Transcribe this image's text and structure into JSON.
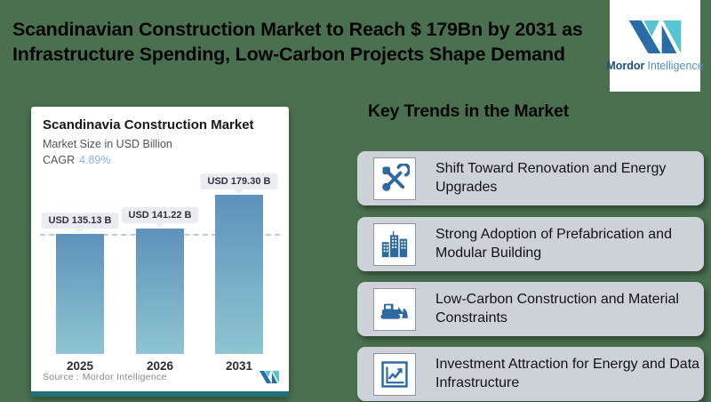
{
  "header": {
    "title": "Scandinavian Construction Market to Reach $ 179Bn by 2031 as\nInfrastructure Spending, Low-Carbon Projects Shape Demand",
    "logo": {
      "brand_bold": "Mordor",
      "brand_light": "Intelligence"
    }
  },
  "chart_card": {
    "title": "Scandinavia Construction Market",
    "subtitle": "Market Size in USD Billion",
    "cagr_label": "CAGR",
    "cagr_value": "4.89%",
    "source": "Source :  Mordor Intelligence"
  },
  "chart_data": {
    "type": "bar",
    "title": "Scandinavia Construction Market",
    "subtitle": "Market Size in USD Billion",
    "cagr": "4.89%",
    "categories": [
      "2025",
      "2026",
      "2031"
    ],
    "values": [
      135.13,
      141.22,
      179.3
    ],
    "bar_labels": [
      "USD 135.13 B",
      "USD 141.22 B",
      "USD 179.30 B"
    ],
    "unit": "USD Billion",
    "reference_line": 135.13,
    "ylim": [
      0,
      200
    ],
    "grid": "single dashed reference line",
    "legend": false,
    "source": "Mordor Intelligence"
  },
  "key_trends": {
    "heading": "Key Trends in the Market",
    "items": [
      {
        "icon": "tools-icon",
        "label": "Shift Toward Renovation and Energy Upgrades"
      },
      {
        "icon": "buildings-icon",
        "label": "Strong Adoption of Prefabrication and Modular Building"
      },
      {
        "icon": "bulldozer-icon",
        "label": "Low-Carbon Construction and Material Constraints"
      },
      {
        "icon": "growth-chart-icon",
        "label": "Investment Attraction for Energy and Data Infrastructure"
      }
    ]
  },
  "colors": {
    "background": "#4a7050",
    "card_bottom_teal": "#1e7176",
    "bar_gradient_top": "#5e91bb",
    "bar_gradient_bottom": "#8ec5d1",
    "dashed_line": "#b7cdda",
    "label_pill_bg": "#e9edf1",
    "trend_card_bg": "#cdd2d9",
    "icon_blue": "#2d6b9f",
    "cagr_value_blue": "#83b3d9",
    "logo_dark_blue": "#2a6da6",
    "logo_teal": "#57c4d2"
  }
}
